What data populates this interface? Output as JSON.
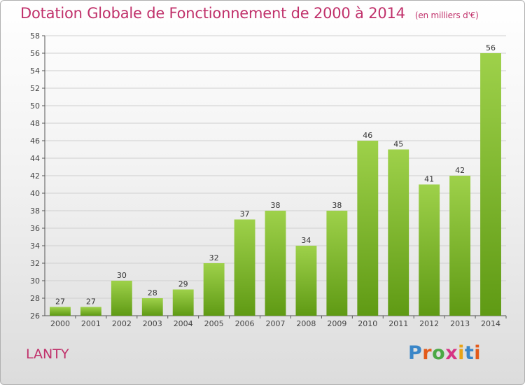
{
  "header": {
    "title": "Dotation Globale de Fonctionnement de 2000 à 2014",
    "subtitle": "(en milliers d'€)"
  },
  "footer": {
    "commune": "LANTY",
    "logo_text": "Proxiti"
  },
  "colors": {
    "title": "#c0306a",
    "bar_top": "#9ed14a",
    "bar_bottom": "#5f9a14",
    "logo_letters": [
      "#3a86c8",
      "#e35a1a",
      "#4aa844",
      "#d63384",
      "#e8a317",
      "#3a86c8",
      "#e35a1a"
    ]
  },
  "chart_data": {
    "type": "bar",
    "categories": [
      "2000",
      "2001",
      "2002",
      "2003",
      "2004",
      "2005",
      "2006",
      "2007",
      "2008",
      "2009",
      "2010",
      "2011",
      "2012",
      "2013",
      "2014"
    ],
    "values": [
      27,
      27,
      30,
      28,
      29,
      32,
      37,
      38,
      34,
      38,
      46,
      45,
      41,
      42,
      56
    ],
    "ylim": [
      26,
      58
    ],
    "yticks": [
      26,
      28,
      30,
      32,
      34,
      36,
      38,
      40,
      42,
      44,
      46,
      48,
      50,
      52,
      54,
      56,
      58
    ],
    "grid": true,
    "legend": "none"
  }
}
